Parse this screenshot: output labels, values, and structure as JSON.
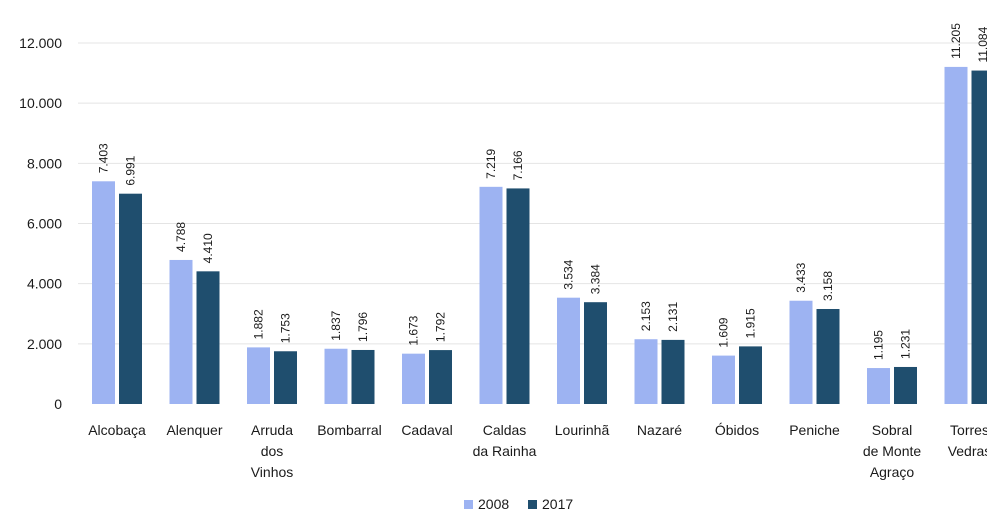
{
  "chart_data": {
    "type": "bar",
    "categories": [
      [
        "Alcobaça"
      ],
      [
        "Alenquer"
      ],
      [
        "Arruda",
        "dos",
        "Vinhos"
      ],
      [
        "Bombarral"
      ],
      [
        "Cadaval"
      ],
      [
        "Caldas",
        "da Rainha"
      ],
      [
        "Lourinhã"
      ],
      [
        "Nazaré"
      ],
      [
        "Óbidos"
      ],
      [
        "Peniche"
      ],
      [
        "Sobral",
        "de Monte",
        "Agraço"
      ],
      [
        "Torres",
        "Vedras"
      ]
    ],
    "series": [
      {
        "name": "2008",
        "values": [
          7403,
          4788,
          1882,
          1837,
          1673,
          7219,
          3534,
          2153,
          1609,
          3433,
          1195,
          11205
        ],
        "labels": [
          "7.403",
          "4.788",
          "1.882",
          "1.837",
          "1.673",
          "7.219",
          "3.534",
          "2.153",
          "1.609",
          "3.433",
          "1.195",
          "11.205"
        ]
      },
      {
        "name": "2017",
        "values": [
          6991,
          4410,
          1753,
          1796,
          1792,
          7166,
          3384,
          2131,
          1915,
          3158,
          1231,
          11084
        ],
        "labels": [
          "6.991",
          "4.410",
          "1.753",
          "1.796",
          "1.792",
          "7.166",
          "3.384",
          "2.131",
          "1.915",
          "3.158",
          "1.231",
          "11.084"
        ]
      }
    ],
    "colors": [
      "#9db3f2",
      "#1f4e6e"
    ],
    "ylim": [
      0,
      12000
    ],
    "yticks": [
      0,
      2000,
      4000,
      6000,
      8000,
      10000,
      12000
    ],
    "ytick_labels": [
      "0",
      "2.000",
      "4.000",
      "6.000",
      "8.000",
      "10.000",
      "12.000"
    ],
    "grid": true,
    "legend_position": "bottom-center"
  }
}
